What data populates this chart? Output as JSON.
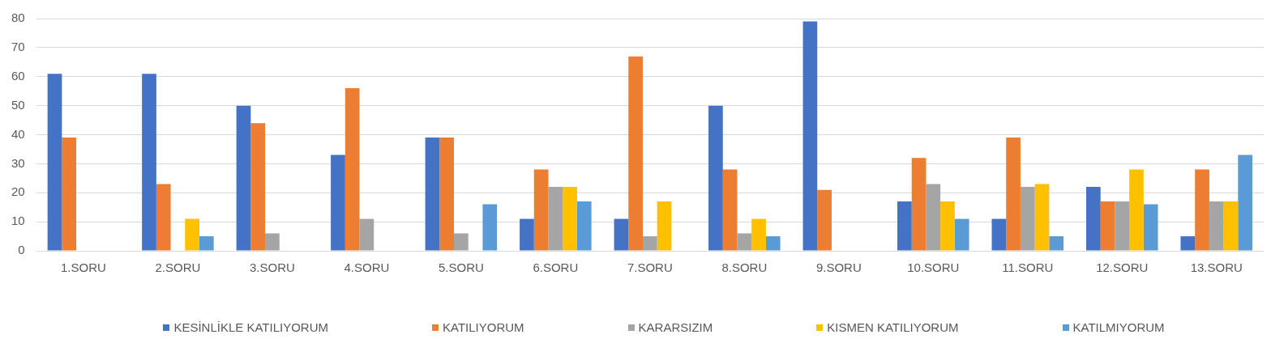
{
  "chart_data": {
    "type": "bar",
    "categories": [
      "1.SORU",
      "2.SORU",
      "3.SORU",
      "4.SORU",
      "5.SORU",
      "6.SORU",
      "7.SORU",
      "8.SORU",
      "9.SORU",
      "10.SORU",
      "11.SORU",
      "12.SORU",
      "13.SORU"
    ],
    "series": [
      {
        "name": "KESİNLİKLE KATILIYORUM",
        "color": "#4472c4",
        "values": [
          61,
          61,
          50,
          33,
          39,
          11,
          11,
          50,
          79,
          17,
          11,
          22,
          5
        ]
      },
      {
        "name": "KATILIYORUM",
        "color": "#ed7d31",
        "values": [
          39,
          23,
          44,
          56,
          39,
          28,
          67,
          28,
          21,
          32,
          39,
          17,
          28
        ]
      },
      {
        "name": "KARARSIZIM",
        "color": "#a5a5a5",
        "values": [
          0,
          0,
          6,
          11,
          6,
          22,
          5,
          6,
          0,
          23,
          22,
          17,
          17
        ]
      },
      {
        "name": "KISMEN KATILIYORUM",
        "color": "#ffc000",
        "values": [
          0,
          11,
          0,
          0,
          0,
          22,
          17,
          11,
          0,
          17,
          23,
          28,
          17
        ]
      },
      {
        "name": "KATILMIYORUM",
        "color": "#5b9bd5",
        "values": [
          0,
          5,
          0,
          0,
          16,
          17,
          0,
          5,
          0,
          11,
          5,
          16,
          33
        ]
      }
    ],
    "ylim": [
      0,
      80
    ],
    "yticks": [
      0,
      10,
      20,
      30,
      40,
      50,
      60,
      70,
      80
    ],
    "grid": "y",
    "legend": "bottom"
  }
}
